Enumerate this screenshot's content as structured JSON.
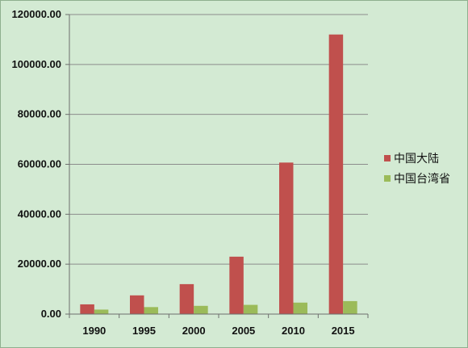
{
  "chart_data": {
    "type": "bar",
    "categories": [
      "1990",
      "1995",
      "2000",
      "2005",
      "2010",
      "2015"
    ],
    "series": [
      {
        "name": "中国大陆",
        "color": "#c0504d",
        "values": [
          3900,
          7500,
          12000,
          23000,
          60700,
          112000
        ]
      },
      {
        "name": "中国台湾省",
        "color": "#9bbb59",
        "values": [
          1800,
          2800,
          3300,
          3700,
          4600,
          5200
        ]
      }
    ],
    "ylim": [
      0,
      120000
    ],
    "yticks": [
      0,
      20000,
      40000,
      60000,
      80000,
      100000,
      120000
    ],
    "ytick_labels": [
      "0.00",
      "20000.00",
      "40000.00",
      "60000.00",
      "80000.00",
      "100000.00",
      "120000.00"
    ],
    "grid": true,
    "legend": "right"
  }
}
